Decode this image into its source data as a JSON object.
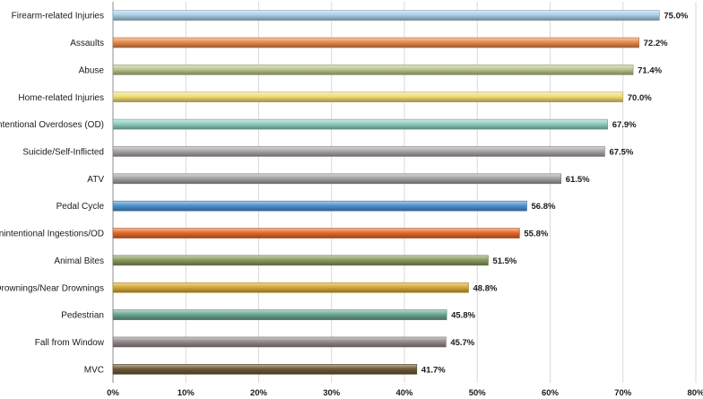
{
  "chart_data": {
    "type": "bar",
    "orientation": "horizontal",
    "categories": [
      "Firearm-related Injuries",
      "Assaults",
      "Abuse",
      "Home-related Injuries",
      "Intentional Overdoses (OD)",
      "Suicide/Self-Inflicted",
      "ATV",
      "Pedal Cycle",
      "Unintentional Ingestions/OD",
      "Animal Bites",
      "Drownings/Near Drownings",
      "Pedestrian",
      "Fall from Window",
      "MVC"
    ],
    "values": [
      75.0,
      72.2,
      71.4,
      70.0,
      67.9,
      67.5,
      61.5,
      56.8,
      55.8,
      51.5,
      48.8,
      45.8,
      45.7,
      41.7
    ],
    "value_labels": [
      "75.0%",
      "72.2%",
      "71.4%",
      "70.0%",
      "67.9%",
      "67.5%",
      "61.5%",
      "56.8%",
      "55.8%",
      "51.5%",
      "48.8%",
      "45.8%",
      "45.7%",
      "41.7%"
    ],
    "colors": [
      "#a9cfe6",
      "#e98a4c",
      "#b9c58c",
      "#f0dc73",
      "#8fcfc2",
      "#aca6a6",
      "#a3a3a3",
      "#4f93d3",
      "#e56a2b",
      "#8a9b5c",
      "#d6aa38",
      "#6ba594",
      "#948b8b",
      "#6f5b38"
    ],
    "xlim": [
      0,
      80
    ],
    "xticks": [
      0,
      10,
      20,
      30,
      40,
      50,
      60,
      70,
      80
    ],
    "xtick_labels": [
      "0%",
      "10%",
      "20%",
      "30%",
      "40%",
      "50%",
      "60%",
      "70%",
      "80%"
    ],
    "title": "",
    "xlabel": "",
    "ylabel": "",
    "grid": true,
    "legend": "none"
  }
}
